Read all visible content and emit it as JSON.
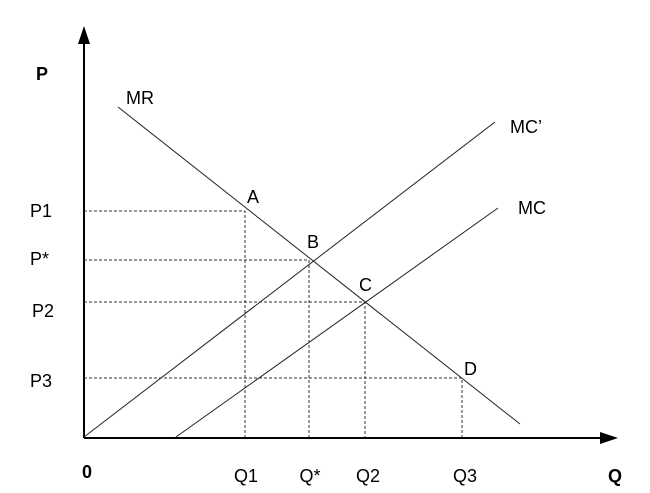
{
  "axes": {
    "y_label": "P",
    "x_label": "Q",
    "origin": "0"
  },
  "price_labels": [
    "P1",
    "P*",
    "P2",
    "P3"
  ],
  "quantity_labels": [
    "Q1",
    "Q*",
    "Q2",
    "Q3"
  ],
  "curves": [
    {
      "label": "MR"
    },
    {
      "label": "MC’"
    },
    {
      "label": "MC"
    }
  ],
  "points": [
    {
      "label": "A"
    },
    {
      "label": "B"
    },
    {
      "label": "C"
    },
    {
      "label": "D"
    }
  ]
}
